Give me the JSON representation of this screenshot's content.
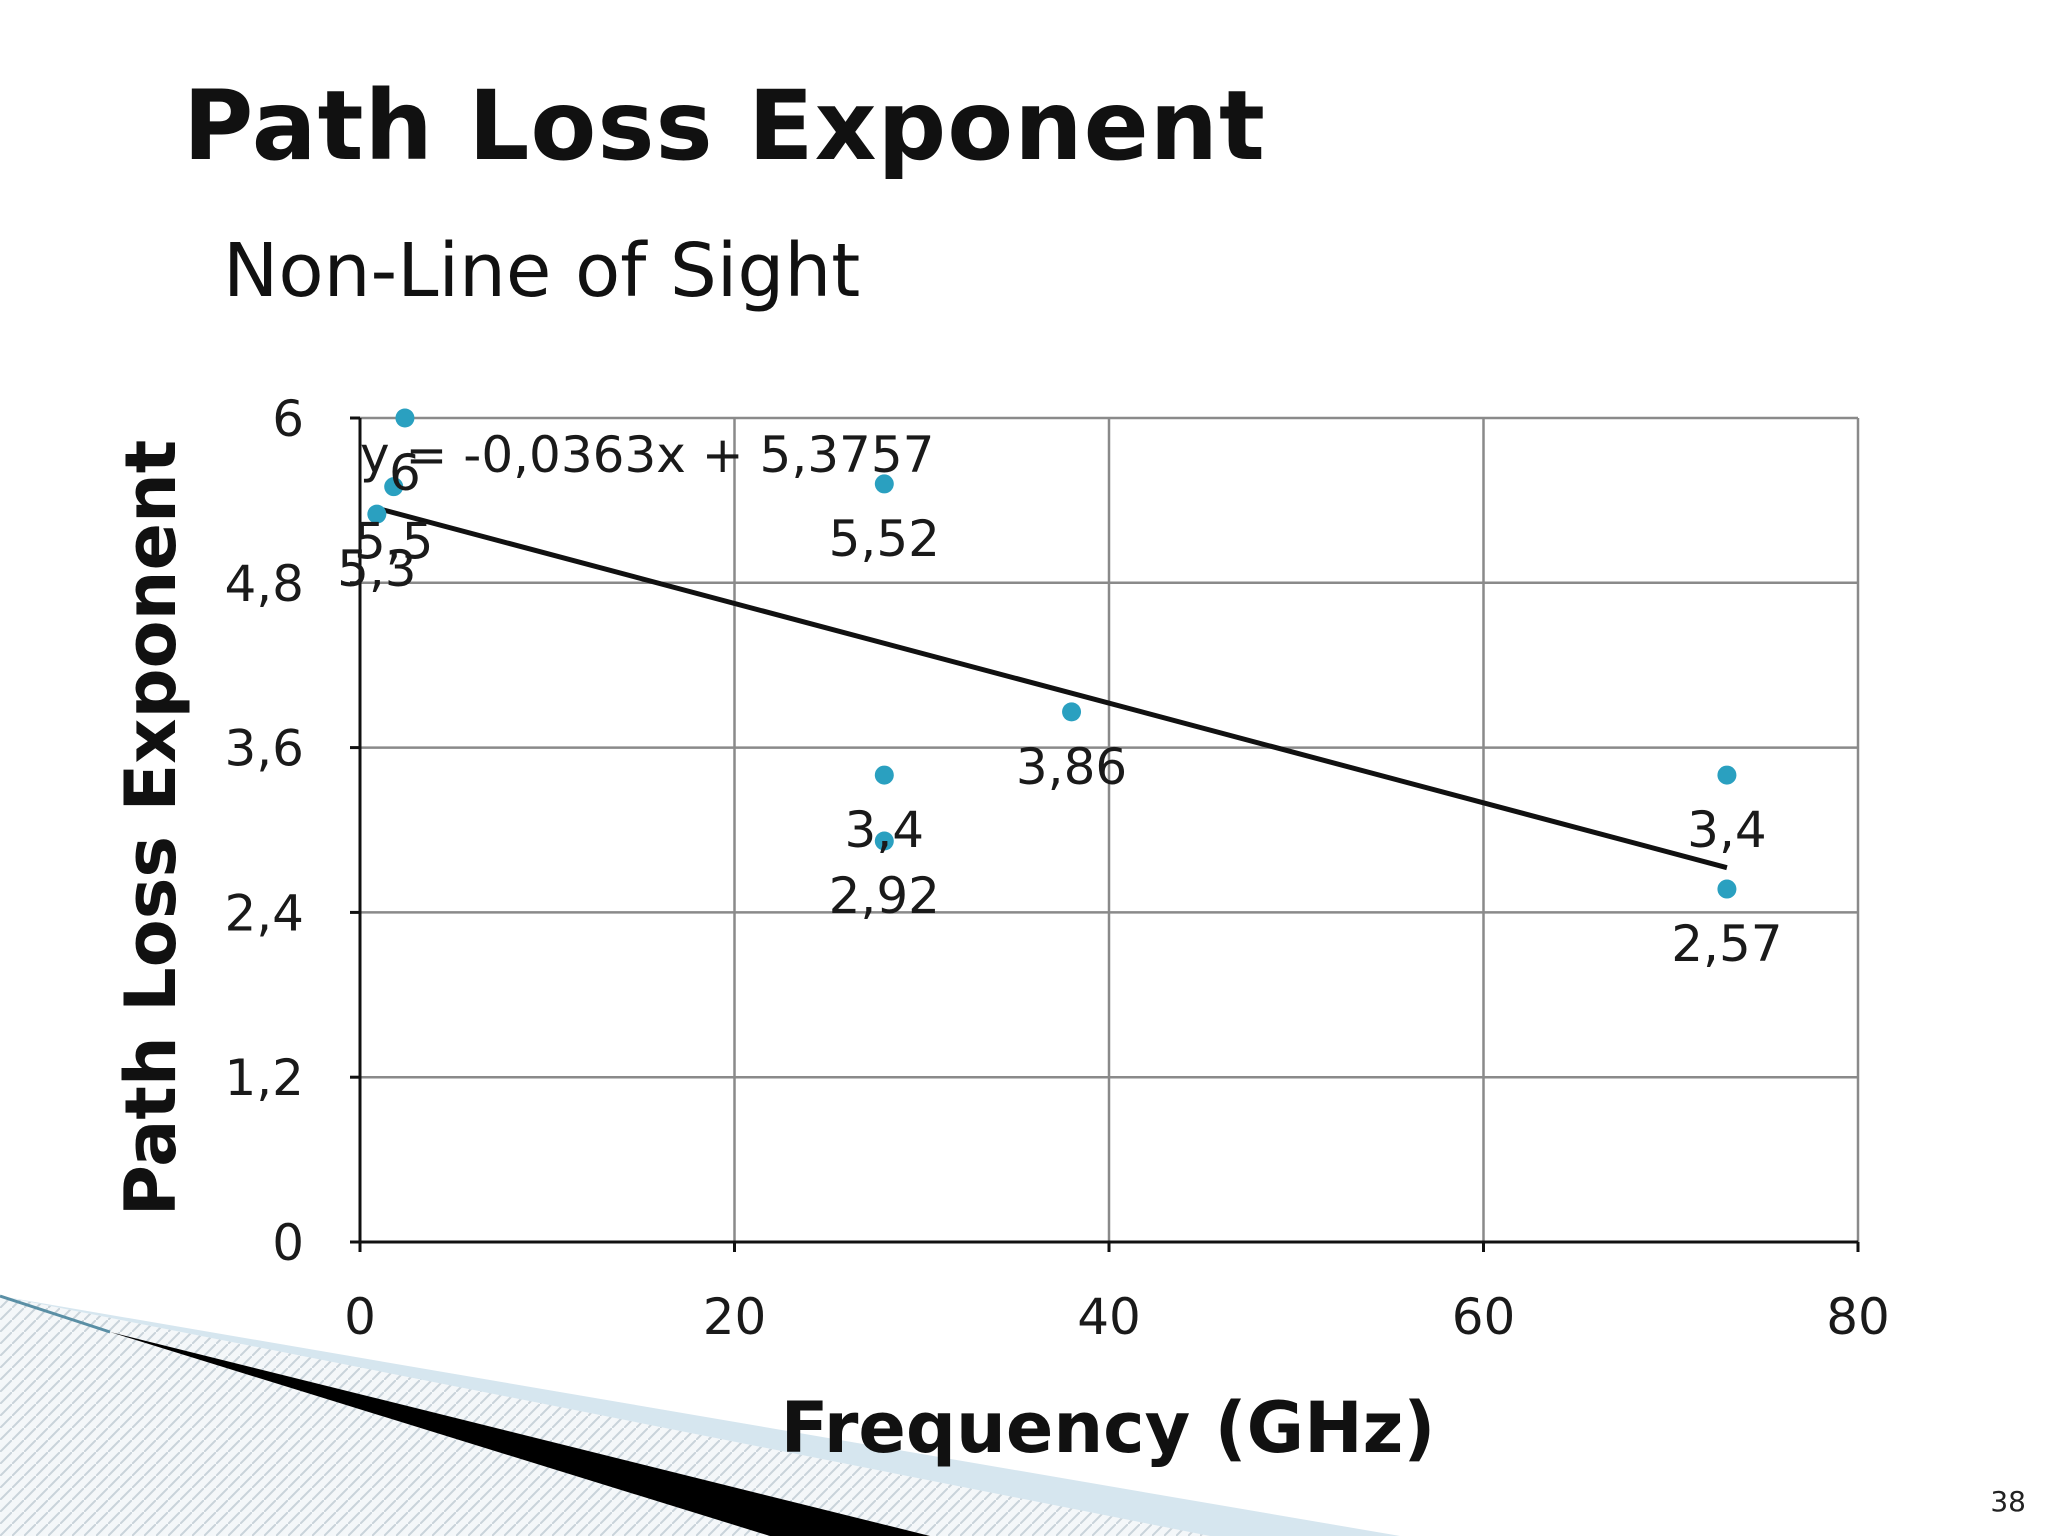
{
  "slide": {
    "title": "Path Loss Exponent",
    "subtitle": "Non-Line of Sight",
    "page_number": "38"
  },
  "colors": {
    "marker": "#2aa0c0",
    "trendline": "#111111",
    "grid": "#8a8a8a",
    "axis": "#111111",
    "deco_light": "#d6e6ef",
    "deco_dark": "#000000"
  },
  "chart_data": {
    "type": "scatter",
    "title": "",
    "xlabel": "Frequency (GHz)",
    "ylabel": "Path Loss Exponent",
    "xlim": [
      0,
      80
    ],
    "ylim": [
      0,
      6
    ],
    "x_ticks": [
      0,
      20,
      40,
      60,
      80
    ],
    "x_tick_labels": [
      "0",
      "20",
      "40",
      "60",
      "80"
    ],
    "y_ticks": [
      0,
      1.2,
      2.4,
      3.6,
      4.8,
      6
    ],
    "y_tick_labels": [
      "0",
      "1,2",
      "2,4",
      "3,6",
      "4,8",
      "6"
    ],
    "grid": true,
    "legend": "none",
    "points": [
      {
        "x": 0.9,
        "y": 5.3,
        "label": "5,3"
      },
      {
        "x": 1.8,
        "y": 5.5,
        "label": "5,5"
      },
      {
        "x": 2.4,
        "y": 6.0,
        "label": "6"
      },
      {
        "x": 28,
        "y": 5.52,
        "label": "5,52"
      },
      {
        "x": 28,
        "y": 3.4,
        "label": "3,4"
      },
      {
        "x": 28,
        "y": 2.92,
        "label": "2,92"
      },
      {
        "x": 38,
        "y": 3.86,
        "label": "3,86"
      },
      {
        "x": 73,
        "y": 3.4,
        "label": "3,4"
      },
      {
        "x": 73,
        "y": 2.57,
        "label": "2,57"
      }
    ],
    "trendline": {
      "equation": "y = -0,0363x + 5,3757",
      "slope": -0.0363,
      "intercept": 5.3757,
      "x_range": [
        0.9,
        73
      ]
    }
  }
}
